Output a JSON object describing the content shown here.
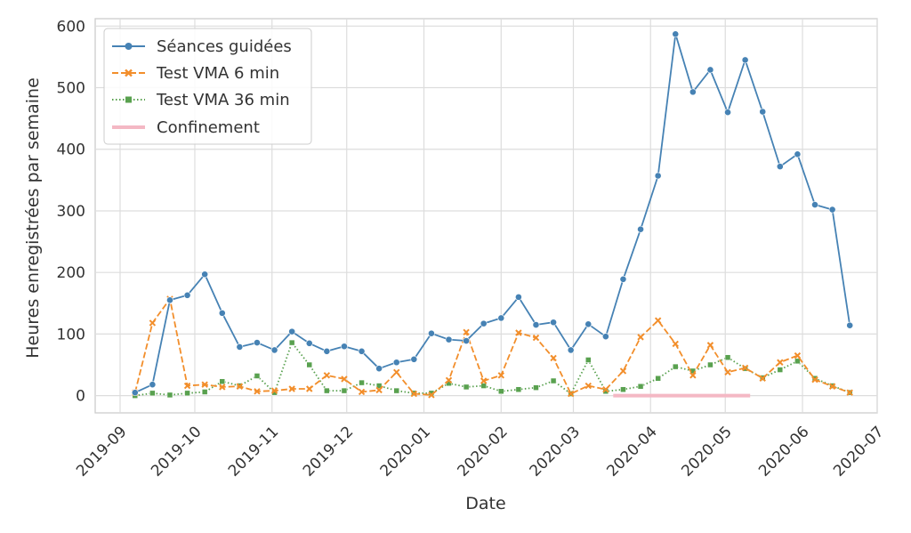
{
  "chart_data": {
    "type": "line",
    "title": "",
    "xlabel": "Date",
    "ylabel": "Heures enregistrées par semaine",
    "xlim": [
      "2019-08-22",
      "2020-07-01"
    ],
    "ylim": [
      -28,
      612
    ],
    "x_ticks": [
      "2019-09-01",
      "2019-10-01",
      "2019-11-01",
      "2019-12-01",
      "2020-01-01",
      "2020-02-01",
      "2020-03-01",
      "2020-04-01",
      "2020-05-01",
      "2020-06-01",
      "2020-07-01"
    ],
    "x_tick_labels": [
      "2019-09",
      "2019-10",
      "2019-11",
      "2019-12",
      "2020-01",
      "2020-02",
      "2020-03",
      "2020-04",
      "2020-05",
      "2020-06",
      "2020-07"
    ],
    "y_ticks": [
      0,
      100,
      200,
      300,
      400,
      500,
      600
    ],
    "y_tick_labels": [
      "0",
      "100",
      "200",
      "300",
      "400",
      "500",
      "600"
    ],
    "grid": true,
    "legend_position": "top-left",
    "x": [
      "2019-09-07",
      "2019-09-14",
      "2019-09-21",
      "2019-09-28",
      "2019-10-05",
      "2019-10-12",
      "2019-10-19",
      "2019-10-26",
      "2019-11-02",
      "2019-11-09",
      "2019-11-16",
      "2019-11-23",
      "2019-11-30",
      "2019-12-07",
      "2019-12-14",
      "2019-12-21",
      "2019-12-28",
      "2020-01-04",
      "2020-01-11",
      "2020-01-18",
      "2020-01-25",
      "2020-02-01",
      "2020-02-08",
      "2020-02-15",
      "2020-02-22",
      "2020-02-29",
      "2020-03-07",
      "2020-03-14",
      "2020-03-21",
      "2020-03-28",
      "2020-04-04",
      "2020-04-11",
      "2020-04-18",
      "2020-04-25",
      "2020-05-02",
      "2020-05-09",
      "2020-05-16",
      "2020-05-23",
      "2020-05-30",
      "2020-06-06",
      "2020-06-13",
      "2020-06-20"
    ],
    "series": [
      {
        "name": "Séances guidées",
        "color": "#4682b4",
        "dash": "solid",
        "marker": "circle",
        "values": [
          5,
          18,
          155,
          163,
          197,
          134,
          79,
          86,
          74,
          104,
          85,
          72,
          80,
          72,
          44,
          54,
          59,
          101,
          91,
          89,
          117,
          126,
          160,
          115,
          119,
          74,
          116,
          96,
          189,
          270,
          357,
          587,
          493,
          529,
          460,
          545,
          461,
          372,
          392,
          310,
          302,
          114
        ]
      },
      {
        "name": "Test VMA 6 min",
        "color": "#f28e2b",
        "dash": "dashed",
        "marker": "x",
        "values": [
          5,
          118,
          157,
          16,
          18,
          14,
          15,
          7,
          8,
          11,
          11,
          33,
          27,
          6,
          9,
          38,
          3,
          1,
          25,
          103,
          24,
          33,
          102,
          94,
          61,
          3,
          16,
          10,
          40,
          95,
          122,
          84,
          33,
          82,
          38,
          45,
          28,
          54,
          65,
          26,
          15,
          5
        ]
      },
      {
        "name": "Test VMA 36 min",
        "color": "#59a14f",
        "dash": "dotted",
        "marker": "square",
        "values": [
          0,
          4,
          1,
          4,
          6,
          23,
          16,
          32,
          5,
          86,
          50,
          8,
          8,
          21,
          16,
          8,
          4,
          4,
          20,
          14,
          16,
          7,
          10,
          13,
          24,
          3,
          58,
          7,
          10,
          15,
          28,
          47,
          40,
          50,
          62,
          44,
          29,
          42,
          56,
          28,
          16,
          5
        ]
      },
      {
        "name": "Confinement",
        "color": "#f4b8c4",
        "dash": "solid",
        "marker": "none",
        "x": [
          "2020-03-17",
          "2020-05-11"
        ],
        "values": [
          0,
          0
        ]
      }
    ]
  }
}
